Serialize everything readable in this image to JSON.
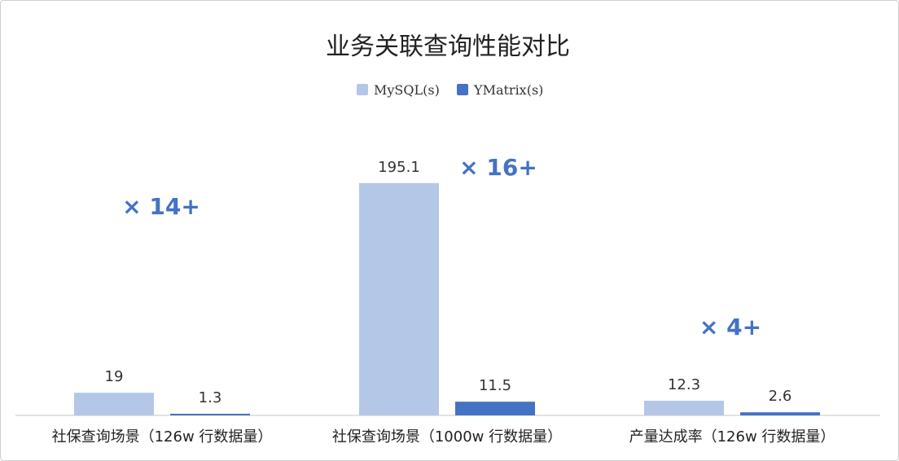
{
  "chart_data": {
    "type": "bar",
    "title": "业务关联查询性能对比",
    "categories": [
      "社保查询场景（126w 行数据量）",
      "社保查询场景（1000w 行数据量）",
      "产量达成率（126w 行数据量）"
    ],
    "series": [
      {
        "name": "MySQL(s)",
        "values": [
          19,
          195.1,
          12.3
        ],
        "labels": [
          "19",
          "195.1",
          "12.3"
        ],
        "color": "#b4c7e7"
      },
      {
        "name": "YMatrix(s)",
        "values": [
          1.3,
          11.5,
          2.6
        ],
        "labels": [
          "1.3",
          "11.5",
          "2.6"
        ],
        "color": "#4472c4"
      }
    ],
    "annotations": [
      "× 14+",
      "× 16+",
      "× 4+"
    ],
    "ylim": [
      0,
      210
    ],
    "grid": false,
    "legend": "top-center"
  }
}
